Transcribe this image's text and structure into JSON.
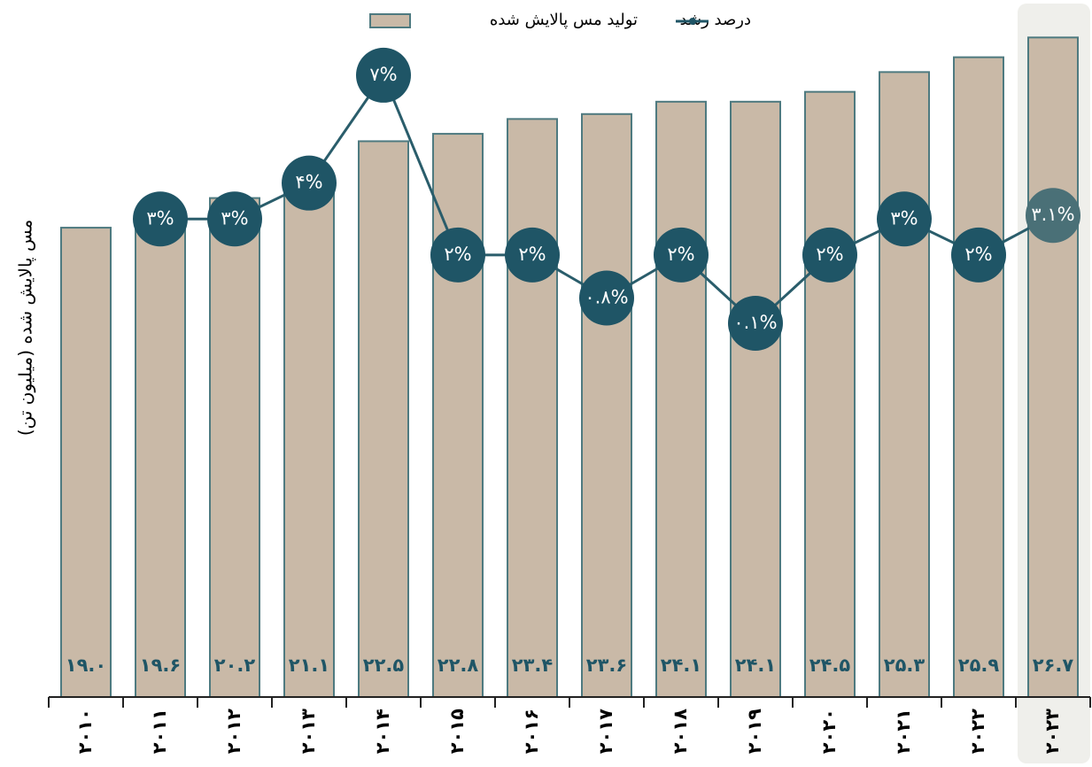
{
  "chart_data": {
    "type": "bar",
    "y_label": "مس پالایش شده (میلیون تن)",
    "categories": [
      "۲۰۱۰",
      "۲۰۱۱",
      "۲۰۱۲",
      "۲۰۱۳",
      "۲۰۱۴",
      "۲۰۱۵",
      "۲۰۱۶",
      "۲۰۱۷",
      "۲۰۱۸",
      "۲۰۱۹",
      "۲۰۲۰",
      "۲۰۲۱",
      "۲۰۲۲",
      "۲۰۲۳"
    ],
    "series": [
      {
        "name": "تولید مس پالایش شده",
        "type": "bar",
        "color": "#c9b9a7",
        "edge_color": "#4e7a80",
        "values": [
          19.0,
          19.6,
          20.2,
          21.1,
          22.5,
          22.8,
          23.4,
          23.6,
          24.1,
          24.1,
          24.5,
          25.3,
          25.9,
          26.7
        ],
        "value_labels": [
          "۱۹.۰",
          "۱۹.۶",
          "۲۰.۲",
          "۲۱.۱",
          "۲۲.۵",
          "۲۲.۸",
          "۲۳.۴",
          "۲۳.۶",
          "۲۴.۱",
          "۲۴.۱",
          "۲۴.۵",
          "۲۵.۳",
          "۲۵.۹",
          "۲۶.۷"
        ]
      },
      {
        "name": "درصد رشد",
        "type": "line",
        "axis": "y2",
        "color": "#1f5566",
        "values": [
          null,
          3,
          3,
          4,
          7,
          2,
          2,
          0.8,
          2,
          0.1,
          2,
          3,
          2,
          3.1
        ],
        "value_labels": [
          null,
          "۳%",
          "۳%",
          "۴%",
          "۷%",
          "۲%",
          "۲%",
          "۰.۸%",
          "۲%",
          "۰.۱%",
          "۲%",
          "۳%",
          "۲%",
          "۳.۱%"
        ]
      }
    ],
    "ylim": [
      0,
      27.5
    ],
    "y2lim": [
      -10.3,
      8.6
    ]
  }
}
